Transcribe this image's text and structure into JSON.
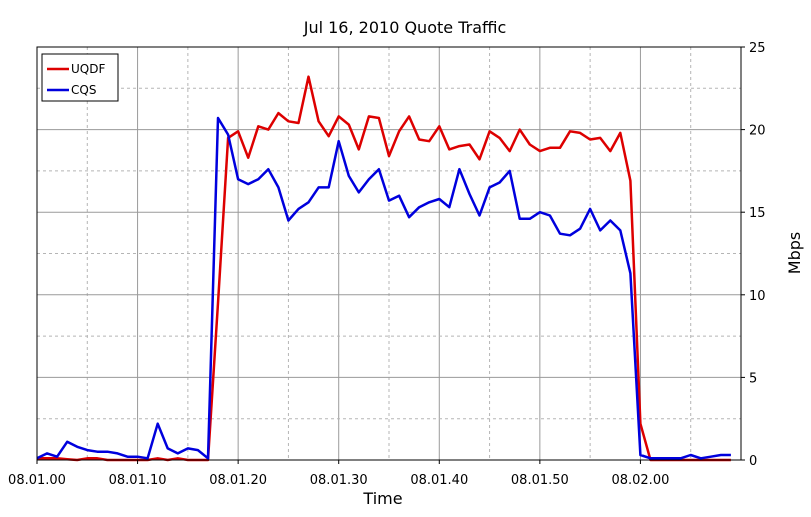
{
  "chart_data": {
    "type": "line",
    "title": "Jul 16, 2010 Quote Traffic",
    "xlabel": "Time",
    "ylabel": "Mbps",
    "x_ticks": [
      "08.01.00",
      "08.01.10",
      "08.01.20",
      "08.01.30",
      "08.01.40",
      "08.01.50",
      "08.02.00"
    ],
    "x_tick_seconds": [
      0,
      10,
      20,
      30,
      40,
      50,
      60
    ],
    "xlim": [
      0,
      70
    ],
    "ylim": [
      0,
      25
    ],
    "y_ticks": [
      0,
      5,
      10,
      15,
      20,
      25
    ],
    "y_axis_side": "right",
    "grid": true,
    "legend": "top-left",
    "x": [
      0,
      1,
      2,
      3,
      4,
      5,
      6,
      7,
      8,
      9,
      10,
      11,
      12,
      13,
      14,
      15,
      16,
      17,
      18,
      19,
      20,
      21,
      22,
      23,
      24,
      25,
      26,
      27,
      28,
      29,
      30,
      31,
      32,
      33,
      34,
      35,
      36,
      37,
      38,
      39,
      40,
      41,
      42,
      43,
      44,
      45,
      46,
      47,
      48,
      49,
      50,
      51,
      52,
      53,
      54,
      55,
      56,
      57,
      58,
      59,
      60,
      61,
      62,
      63,
      64,
      65,
      66,
      67,
      68,
      69
    ],
    "series": [
      {
        "name": "UQDF",
        "color": "#dd0000",
        "values": [
          0.1,
          0.1,
          0.1,
          0.05,
          0.0,
          0.1,
          0.1,
          0.0,
          0.0,
          0.0,
          0.0,
          0.0,
          0.1,
          0.0,
          0.1,
          0.0,
          0.0,
          0.0,
          9.5,
          19.5,
          19.9,
          18.3,
          20.2,
          20.0,
          21.0,
          20.5,
          20.4,
          23.2,
          20.5,
          19.6,
          20.8,
          20.3,
          18.8,
          20.8,
          20.7,
          18.4,
          19.9,
          20.8,
          19.4,
          19.3,
          20.2,
          18.8,
          19.0,
          19.1,
          18.2,
          19.9,
          19.5,
          18.7,
          20.0,
          19.1,
          18.7,
          18.9,
          18.9,
          19.9,
          19.8,
          19.4,
          19.5,
          18.7,
          19.8,
          16.9,
          2.2,
          0.0,
          0.0,
          0.0,
          0.0,
          0.0,
          0.0,
          0.0,
          0.0,
          0.0
        ]
      },
      {
        "name": "CQS",
        "color": "#0000dd",
        "values": [
          0.1,
          0.4,
          0.2,
          1.1,
          0.8,
          0.6,
          0.5,
          0.5,
          0.4,
          0.2,
          0.2,
          0.1,
          2.2,
          0.7,
          0.4,
          0.7,
          0.6,
          0.1,
          20.7,
          19.7,
          17.0,
          16.7,
          17.0,
          17.6,
          16.5,
          14.5,
          15.2,
          15.6,
          16.5,
          16.5,
          19.3,
          17.2,
          16.2,
          17.0,
          17.6,
          15.7,
          16.0,
          14.7,
          15.3,
          15.6,
          15.8,
          15.3,
          17.6,
          16.1,
          14.8,
          16.5,
          16.8,
          17.5,
          14.6,
          14.6,
          15.0,
          14.8,
          13.7,
          13.6,
          14.0,
          15.2,
          13.9,
          14.5,
          13.9,
          11.3,
          0.3,
          0.1,
          0.1,
          0.1,
          0.1,
          0.3,
          0.1,
          0.2,
          0.3,
          0.3
        ]
      }
    ]
  }
}
